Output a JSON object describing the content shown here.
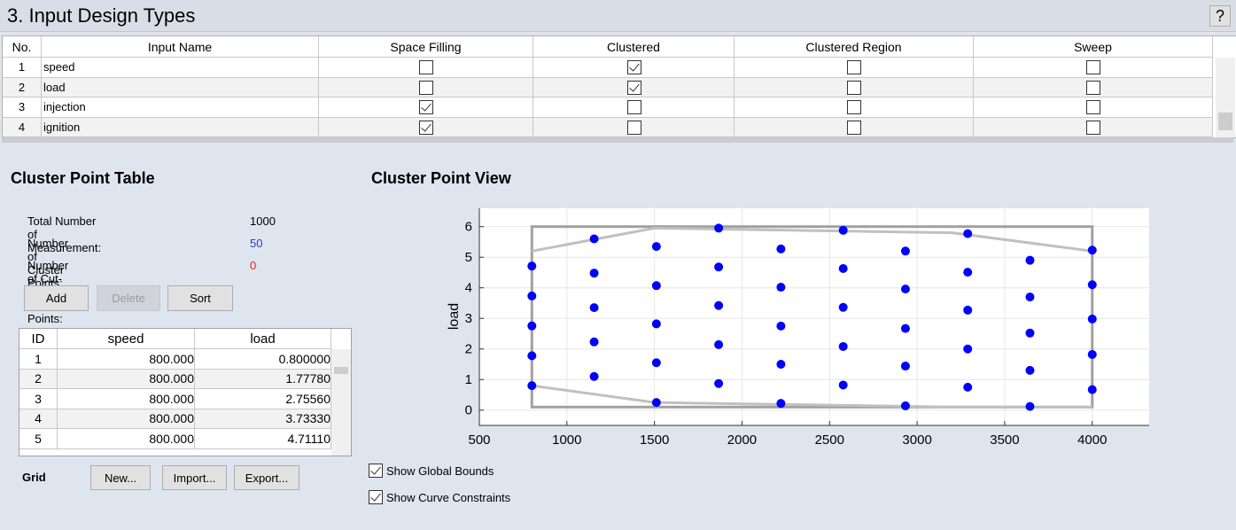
{
  "header": {
    "title": "3. Input Design Types",
    "help": "?"
  },
  "input_table": {
    "columns": [
      "No.",
      "Input Name",
      "Space Filling",
      "Clustered",
      "Clustered Region",
      "Sweep"
    ],
    "rows": [
      {
        "no": 1,
        "name": "speed",
        "checks": [
          false,
          true,
          false,
          false
        ]
      },
      {
        "no": 2,
        "name": "load",
        "checks": [
          false,
          true,
          false,
          false
        ]
      },
      {
        "no": 3,
        "name": "injection",
        "checks": [
          true,
          false,
          false,
          false
        ]
      },
      {
        "no": 4,
        "name": "ignition",
        "checks": [
          true,
          false,
          false,
          false
        ]
      }
    ]
  },
  "cluster_table": {
    "title": "Cluster Point Table",
    "stats": [
      {
        "label": "Total Number of Measurement:",
        "value": 1000,
        "color": "#000000"
      },
      {
        "label": "Number of Cluster Points:",
        "value": 50,
        "color": "#1f3fd0"
      },
      {
        "label": "Number of Cut-off Cluster Points:",
        "value": 0,
        "color": "#e02020"
      }
    ],
    "buttons": [
      {
        "label": "Add",
        "enabled": true
      },
      {
        "label": "Delete",
        "enabled": false
      },
      {
        "label": "Sort",
        "enabled": true
      }
    ],
    "columns": [
      "ID",
      "speed",
      "load"
    ],
    "rows": [
      [
        1,
        "800.000",
        "0.800000"
      ],
      [
        2,
        "800.000",
        "1.77780"
      ],
      [
        3,
        "800.000",
        "2.75560"
      ],
      [
        4,
        "800.000",
        "3.73330"
      ],
      [
        5,
        "800.000",
        "4.71110"
      ]
    ],
    "grid_label": "Grid",
    "grid_buttons": [
      "New...",
      "Import...",
      "Export..."
    ]
  },
  "options": [
    {
      "label": "Show Global Bounds",
      "checked": true
    },
    {
      "label": "Show Curve Constraints",
      "checked": true
    }
  ],
  "chart_data": {
    "type": "scatter",
    "title": "Cluster Point View",
    "y_label": "load",
    "xlim": [
      500,
      4325
    ],
    "ylim": [
      -0.5,
      6.6
    ],
    "xticks": [
      500,
      1000,
      1500,
      2000,
      2500,
      3000,
      3500,
      4000
    ],
    "yticks": [
      0,
      1,
      2,
      3,
      4,
      5,
      6
    ],
    "grid": true,
    "series": [
      {
        "color": "#0000ff",
        "x": [
          800,
          800,
          800,
          800,
          800,
          1155.56,
          1155.56,
          1155.56,
          1155.56,
          1155.56,
          1511.11,
          1511.11,
          1511.11,
          1511.11,
          1511.11,
          1866.67,
          1866.67,
          1866.67,
          1866.67,
          1866.67,
          2222.22,
          2222.22,
          2222.22,
          2222.22,
          2222.22,
          2577.78,
          2577.78,
          2577.78,
          2577.78,
          2577.78,
          2933.33,
          2933.33,
          2933.33,
          2933.33,
          2933.33,
          3288.89,
          3288.89,
          3288.89,
          3288.89,
          3288.89,
          3644.44,
          3644.44,
          3644.44,
          3644.44,
          3644.44,
          4000,
          4000,
          4000,
          4000,
          4000
        ],
        "values": [
          0.8,
          1.7778,
          2.7556,
          3.7333,
          4.7111,
          1.1,
          2.23,
          3.35,
          4.48,
          5.6,
          0.25,
          1.55,
          2.82,
          4.07,
          5.35,
          0.87,
          2.14,
          3.42,
          4.68,
          5.95,
          0.22,
          1.5,
          2.75,
          4.02,
          5.27,
          0.82,
          2.08,
          3.36,
          4.63,
          5.88,
          0.14,
          1.44,
          2.67,
          3.96,
          5.2,
          0.75,
          2.0,
          3.27,
          4.51,
          5.77,
          0.12,
          1.3,
          2.52,
          3.7,
          4.9,
          0.67,
          1.82,
          2.98,
          4.1,
          5.23
        ]
      }
    ],
    "global_bounds": {
      "color": "#a0a0a0",
      "x": [
        800,
        4000
      ],
      "values": [
        0.1,
        6
      ]
    },
    "curve_constraints": {
      "color": "#c0c0c0",
      "upper": {
        "x": [
          800,
          1500,
          3200,
          4000
        ],
        "values": [
          5.2,
          5.95,
          5.8,
          5.2
        ]
      },
      "lower": {
        "x": [
          800,
          1500,
          3200,
          4000
        ],
        "values": [
          0.8,
          0.25,
          0.1,
          0.1
        ]
      }
    }
  }
}
